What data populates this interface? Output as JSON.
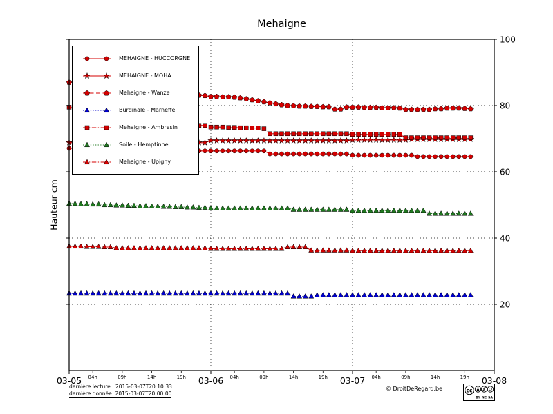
{
  "footer": {
    "last_reading": "dernière lecture : 2015-03-07T20:10:33",
    "last_data": "dernière donnée  2015-03-07T20:00:00",
    "copyright": "© DroitDeRegard.be",
    "cc": "cc",
    "license_parts": [
      "BY",
      "NC",
      "SA"
    ]
  },
  "chart_data": {
    "type": "line",
    "title": "Mehaigne",
    "xlabel": "",
    "ylabel": "Hauteur cm",
    "ylim": [
      0,
      100
    ],
    "xlim": [
      0,
      72
    ],
    "x_unit": "hours since 2015-03-05T00:00",
    "x_start": 0,
    "x_step": 1,
    "grid": "dotted",
    "legend_position": "upper left",
    "y_ticks": [
      20,
      40,
      60,
      80,
      100
    ],
    "x_major_ticks": [
      {
        "h": 0,
        "label": "03-05"
      },
      {
        "h": 24,
        "label": "03-06"
      },
      {
        "h": 48,
        "label": "03-07"
      },
      {
        "h": 72,
        "label": "03-08"
      }
    ],
    "x_minor_ticks": [
      {
        "h": 4,
        "label": "04h"
      },
      {
        "h": 9,
        "label": "09h"
      },
      {
        "h": 14,
        "label": "14h"
      },
      {
        "h": 19,
        "label": "19h"
      },
      {
        "h": 28,
        "label": "04h"
      },
      {
        "h": 33,
        "label": "09h"
      },
      {
        "h": 38,
        "label": "14h"
      },
      {
        "h": 43,
        "label": "19h"
      },
      {
        "h": 52,
        "label": "04h"
      },
      {
        "h": 57,
        "label": "09h"
      },
      {
        "h": 62,
        "label": "14h"
      },
      {
        "h": 67,
        "label": "19h"
      }
    ],
    "series": [
      {
        "name": "MEHAIGNE - HUCCORGNE",
        "color": "#d40000",
        "line": "solid",
        "marker": "circle",
        "values": [
          67.1,
          67.1,
          67.1,
          67.1,
          67,
          67,
          66.9,
          66.9,
          66.8,
          66.8,
          66.7,
          66.7,
          66.6,
          66.6,
          66.5,
          66.5,
          66.5,
          66.4,
          66.4,
          66.4,
          66.3,
          66.3,
          66.3,
          66.3,
          66.3,
          66.3,
          66.3,
          66.3,
          66.3,
          66.3,
          66.3,
          66.3,
          66.3,
          66.3,
          65.4,
          65.4,
          65.4,
          65.4,
          65.4,
          65.4,
          65.4,
          65.4,
          65.4,
          65.4,
          65.4,
          65.4,
          65.4,
          65.4,
          65,
          65,
          65,
          65,
          65,
          65,
          65,
          65,
          65,
          65,
          65,
          64.6,
          64.6,
          64.6,
          64.6,
          64.6,
          64.6,
          64.6,
          64.6,
          64.6,
          64.6
        ]
      },
      {
        "name": "MEHAIGNE - MOHA",
        "color": "#d40000",
        "line": "solid",
        "marker": "star",
        "values": [
          68.8,
          68.8,
          68.8,
          68.8,
          68.8,
          68.8,
          68.8,
          68.8,
          68.8,
          68.8,
          68.8,
          68.8,
          68.8,
          68.8,
          68.8,
          68.8,
          68.8,
          68.8,
          68.8,
          68.8,
          68.8,
          68.8,
          68.8,
          68.8,
          69.4,
          69.4,
          69.4,
          69.4,
          69.4,
          69.4,
          69.4,
          69.4,
          69.4,
          69.4,
          69.4,
          69.4,
          69.4,
          69.4,
          69.4,
          69.4,
          69.4,
          69.4,
          69.4,
          69.4,
          69.4,
          69.4,
          69.4,
          69.4,
          69.6,
          69.6,
          69.6,
          69.6,
          69.6,
          69.6,
          69.6,
          69.6,
          69.6,
          69.6,
          69.8,
          69.8,
          69.8,
          69.8,
          69.8,
          69.8,
          69.8,
          69.8,
          69.8,
          69.8,
          69.8
        ]
      },
      {
        "name": "Mehaigne - Wanze",
        "color": "#d40000",
        "line": "dashed",
        "marker": "pentagon",
        "values": [
          87,
          86.8,
          86.5,
          86.3,
          86,
          85.8,
          85.5,
          85.3,
          85,
          84.8,
          84.6,
          84.4,
          84.2,
          84,
          83.9,
          83.8,
          83.7,
          83.6,
          83.5,
          83.4,
          83.3,
          83.2,
          83.1,
          83,
          82.7,
          82.7,
          82.6,
          82.6,
          82.5,
          82.3,
          82,
          81.7,
          81.4,
          81.1,
          80.8,
          80.5,
          80.2,
          80,
          79.9,
          79.8,
          79.8,
          79.7,
          79.7,
          79.6,
          79.6,
          78.9,
          78.9,
          79.5,
          79.5,
          79.5,
          79.4,
          79.4,
          79.4,
          79.3,
          79.3,
          79.3,
          79.2,
          78.8,
          78.8,
          78.8,
          78.8,
          78.8,
          79,
          79,
          79.2,
          79.2,
          79.2,
          79.1,
          79
        ]
      },
      {
        "name": "Burdinale - Marneffe",
        "color": "#0000cc",
        "line": "dotted",
        "marker": "triangle",
        "values": [
          23.3,
          23.3,
          23.3,
          23.3,
          23.3,
          23.3,
          23.3,
          23.3,
          23.3,
          23.3,
          23.3,
          23.3,
          23.3,
          23.3,
          23.3,
          23.3,
          23.3,
          23.3,
          23.3,
          23.3,
          23.3,
          23.3,
          23.3,
          23.3,
          23.3,
          23.3,
          23.3,
          23.3,
          23.3,
          23.3,
          23.3,
          23.3,
          23.3,
          23.3,
          23.3,
          23.3,
          23.3,
          23.3,
          22.4,
          22.4,
          22.4,
          22.4,
          22.8,
          22.8,
          22.8,
          22.8,
          22.8,
          22.8,
          22.8,
          22.8,
          22.8,
          22.8,
          22.8,
          22.8,
          22.8,
          22.8,
          22.8,
          22.8,
          22.8,
          22.8,
          22.8,
          22.8,
          22.8,
          22.8,
          22.8,
          22.8,
          22.8,
          22.8,
          22.8
        ]
      },
      {
        "name": "Mehaigne - Ambresin",
        "color": "#d40000",
        "line": "dashdot",
        "marker": "square",
        "values": [
          79.5,
          79.2,
          78.9,
          78.6,
          78.3,
          78,
          77.7,
          77.4,
          77.1,
          76.8,
          76.5,
          76.2,
          75.9,
          75.6,
          75.3,
          75,
          74.8,
          74.6,
          74.4,
          74.3,
          74.2,
          74.1,
          74,
          74,
          73.5,
          73.5,
          73.5,
          73.4,
          73.4,
          73.3,
          73.3,
          73.2,
          73.2,
          73,
          71.5,
          71.5,
          71.5,
          71.5,
          71.5,
          71.5,
          71.5,
          71.5,
          71.5,
          71.5,
          71.5,
          71.5,
          71.5,
          71.5,
          71.3,
          71.3,
          71.3,
          71.3,
          71.3,
          71.3,
          71.3,
          71.3,
          71.3,
          70.3,
          70.3,
          70.3,
          70.3,
          70.3,
          70.3,
          70.3,
          70.3,
          70.3,
          70.3,
          70.3,
          70.3
        ]
      },
      {
        "name": "Soile - Hemptinne",
        "color": "#1f7a1f",
        "line": "dotted",
        "marker": "triangle",
        "values": [
          50.4,
          50.4,
          50.3,
          50.3,
          50.2,
          50.2,
          50,
          50,
          49.9,
          49.9,
          49.8,
          49.8,
          49.7,
          49.7,
          49.6,
          49.6,
          49.5,
          49.5,
          49.4,
          49.4,
          49.3,
          49.3,
          49.2,
          49.2,
          49,
          49,
          49,
          49,
          49,
          49,
          49,
          49,
          49,
          49,
          49,
          49,
          49,
          49,
          48.6,
          48.6,
          48.6,
          48.6,
          48.6,
          48.6,
          48.6,
          48.6,
          48.6,
          48.6,
          48.3,
          48.3,
          48.3,
          48.3,
          48.3,
          48.3,
          48.3,
          48.3,
          48.3,
          48.3,
          48.3,
          48.3,
          48.3,
          47.4,
          47.4,
          47.4,
          47.4,
          47.4,
          47.4,
          47.4,
          47.4
        ]
      },
      {
        "name": "Mehaigne - Upigny",
        "color": "#d40000",
        "line": "dashdot",
        "marker": "triangle",
        "values": [
          37.5,
          37.5,
          37.5,
          37.4,
          37.4,
          37.4,
          37.3,
          37.3,
          37,
          37,
          37,
          37,
          37,
          37,
          37,
          37,
          37,
          37,
          37,
          37,
          37,
          37,
          37,
          37,
          36.8,
          36.8,
          36.8,
          36.8,
          36.8,
          36.8,
          36.8,
          36.8,
          36.8,
          36.8,
          36.8,
          36.8,
          36.8,
          37.3,
          37.3,
          37.3,
          37.3,
          36.3,
          36.3,
          36.3,
          36.3,
          36.3,
          36.3,
          36.3,
          36.2,
          36.2,
          36.2,
          36.2,
          36.2,
          36.2,
          36.2,
          36.2,
          36.2,
          36.2,
          36.2,
          36.2,
          36.2,
          36.2,
          36.2,
          36.2,
          36.2,
          36.2,
          36.2,
          36.2,
          36.2
        ]
      }
    ]
  }
}
